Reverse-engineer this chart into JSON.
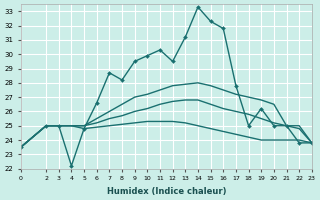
{
  "xlabel": "Humidex (Indice chaleur)",
  "bg_color": "#cceee8",
  "grid_color": "#ffffff",
  "line_color": "#1a7070",
  "ylim": [
    22,
    33.5
  ],
  "xlim": [
    0,
    23
  ],
  "yticks": [
    22,
    23,
    24,
    25,
    26,
    27,
    28,
    29,
    30,
    31,
    32,
    33
  ],
  "xticks": [
    0,
    2,
    3,
    4,
    5,
    6,
    7,
    8,
    9,
    10,
    11,
    12,
    13,
    14,
    15,
    16,
    17,
    18,
    19,
    20,
    21,
    22,
    23
  ],
  "xtick_labels": [
    "0",
    "2",
    "3",
    "4",
    "5",
    "6",
    "7",
    "8",
    "9",
    "10",
    "11",
    "12",
    "13",
    "14",
    "15",
    "16",
    "17",
    "18",
    "19",
    "20",
    "21",
    "22",
    "23"
  ],
  "line1_x": [
    0,
    2,
    3,
    4,
    5,
    6,
    7,
    8,
    9,
    10,
    11,
    12,
    13,
    14,
    15,
    16,
    17,
    18,
    19,
    20,
    21,
    22,
    23
  ],
  "line1_y": [
    23.5,
    25.0,
    25.0,
    22.2,
    24.8,
    26.6,
    28.7,
    28.2,
    29.5,
    29.9,
    30.3,
    29.5,
    31.2,
    33.3,
    32.3,
    31.8,
    27.8,
    25.0,
    26.2,
    25.0,
    25.0,
    23.8,
    23.8
  ],
  "line2_x": [
    0,
    2,
    3,
    4,
    5,
    6,
    7,
    8,
    9,
    10,
    11,
    12,
    13,
    14,
    15,
    16,
    17,
    18,
    19,
    20,
    21,
    22,
    23
  ],
  "line2_y": [
    23.5,
    25.0,
    25.0,
    25.0,
    25.0,
    25.5,
    26.0,
    26.5,
    27.0,
    27.2,
    27.5,
    27.8,
    27.9,
    28.0,
    27.8,
    27.5,
    27.2,
    27.0,
    26.8,
    26.5,
    25.0,
    25.0,
    23.8
  ],
  "line3_x": [
    0,
    2,
    3,
    4,
    5,
    6,
    7,
    8,
    9,
    10,
    11,
    12,
    13,
    14,
    15,
    16,
    17,
    18,
    19,
    20,
    21,
    22,
    23
  ],
  "line3_y": [
    23.5,
    25.0,
    25.0,
    25.0,
    25.0,
    25.2,
    25.5,
    25.7,
    26.0,
    26.2,
    26.5,
    26.7,
    26.8,
    26.8,
    26.5,
    26.2,
    26.0,
    25.8,
    25.5,
    25.2,
    25.0,
    24.8,
    23.8
  ],
  "line4_x": [
    0,
    2,
    3,
    4,
    5,
    6,
    7,
    8,
    9,
    10,
    11,
    12,
    13,
    14,
    15,
    16,
    17,
    18,
    19,
    20,
    21,
    22,
    23
  ],
  "line4_y": [
    23.5,
    25.0,
    25.0,
    25.0,
    24.8,
    24.9,
    25.0,
    25.1,
    25.2,
    25.3,
    25.3,
    25.3,
    25.2,
    25.0,
    24.8,
    24.6,
    24.4,
    24.2,
    24.0,
    24.0,
    24.0,
    24.0,
    23.8
  ]
}
